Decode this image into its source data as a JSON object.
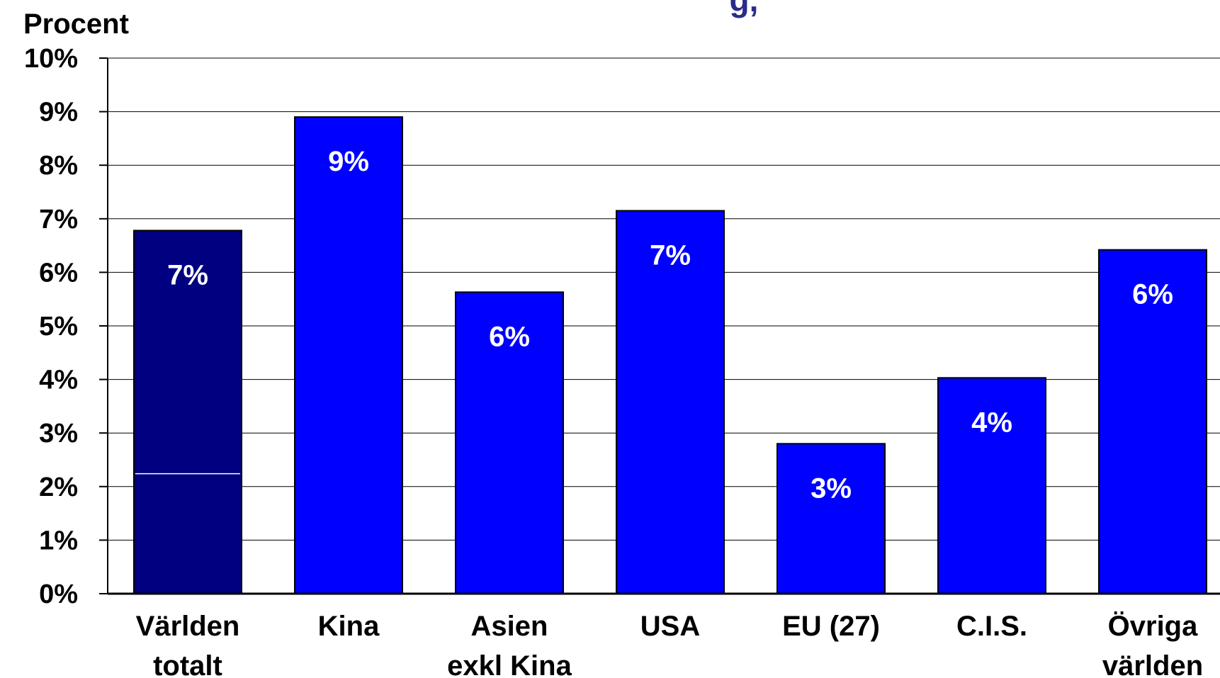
{
  "chart_data": {
    "type": "bar",
    "title": "g,",
    "ylabel": "Procent",
    "xlabel": "",
    "ylim": [
      0,
      10
    ],
    "y_ticks": [
      "0%",
      "1%",
      "2%",
      "3%",
      "4%",
      "5%",
      "6%",
      "7%",
      "8%",
      "9%",
      "10%"
    ],
    "grid": true,
    "categories": [
      [
        "Världen",
        "totalt"
      ],
      [
        "Kina"
      ],
      [
        "Asien",
        "exkl Kina"
      ],
      [
        "USA"
      ],
      [
        "EU (27)"
      ],
      [
        "C.I.S."
      ],
      [
        "Övriga",
        "världen"
      ]
    ],
    "values": [
      6.78,
      8.9,
      5.63,
      7.15,
      2.8,
      4.03,
      6.42
    ],
    "data_labels": [
      "7%",
      "9%",
      "6%",
      "7%",
      "3%",
      "4%",
      "6%"
    ],
    "inner_divider_value": 2.24,
    "colors": {
      "highlight": "#000080",
      "bar": "#0000ff",
      "label": "#ffffff",
      "title": "#2b2b8c"
    }
  }
}
